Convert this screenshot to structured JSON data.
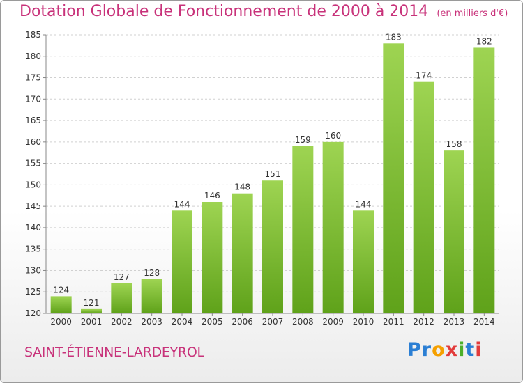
{
  "header": {
    "title": "Dotation Globale de Fonctionnement de 2000 à 2014",
    "unit": "(en milliers d'€)"
  },
  "commune": "SAINT-ÉTIENNE-LARDEYROL",
  "logo": {
    "letters": [
      "P",
      "r",
      "o",
      "x",
      "i",
      "t",
      "i"
    ],
    "colors": [
      "#2b7fd4",
      "#2b7fd4",
      "#f5a000",
      "#e23b3b",
      "#4caf2a",
      "#2b7fd4",
      "#e23b3b"
    ]
  },
  "colors": {
    "title": "#c8327a",
    "bar_top": "#9ed452",
    "bar_bottom": "#5fa21a",
    "grid": "#d0d0d0"
  },
  "chart_data": {
    "type": "bar",
    "title": "Dotation Globale de Fonctionnement de 2000 à 2014",
    "subtitle": "(en milliers d'€)",
    "categories": [
      "2000",
      "2001",
      "2002",
      "2003",
      "2004",
      "2005",
      "2006",
      "2007",
      "2008",
      "2009",
      "2010",
      "2011",
      "2012",
      "2013",
      "2014"
    ],
    "values": [
      124,
      121,
      127,
      128,
      144,
      146,
      148,
      151,
      159,
      160,
      144,
      183,
      174,
      158,
      182
    ],
    "ylim": [
      120,
      185
    ],
    "yticks": [
      120,
      125,
      130,
      135,
      140,
      145,
      150,
      155,
      160,
      165,
      170,
      175,
      180,
      185
    ],
    "grid": true,
    "xlabel": "",
    "ylabel": ""
  }
}
